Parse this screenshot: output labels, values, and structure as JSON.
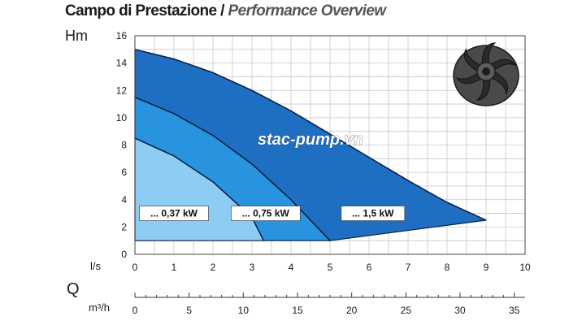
{
  "header": {
    "title_main": "Campo di Prestazione",
    "title_separator": " / ",
    "title_sub": "Performance Overview"
  },
  "watermark": "stac-pump.vn",
  "chart_data": {
    "type": "area",
    "ylabel": "Hm",
    "x_unit_label": "l/s",
    "flow_symbol": "Q",
    "secondary_x_unit_label": "m³/h",
    "xlim": [
      0,
      10
    ],
    "ylim": [
      0,
      16
    ],
    "secondary_xlim": [
      0,
      36
    ],
    "x_ticks": [
      0,
      1,
      2,
      3,
      4,
      5,
      6,
      7,
      8,
      9,
      10
    ],
    "y_ticks": [
      0,
      2,
      4,
      6,
      8,
      10,
      12,
      14,
      16
    ],
    "secondary_x_ticks": [
      0,
      5,
      10,
      15,
      20,
      25,
      30,
      35
    ],
    "grid": true,
    "series": [
      {
        "name": "... 1,5 kW",
        "color": "#1e6fc2",
        "upper": [
          [
            0,
            15
          ],
          [
            1,
            14.3
          ],
          [
            2,
            13.3
          ],
          [
            3,
            12
          ],
          [
            4,
            10.5
          ],
          [
            5,
            8.8
          ],
          [
            6,
            7.1
          ],
          [
            7,
            5.4
          ],
          [
            8,
            3.8
          ],
          [
            9,
            2.5
          ]
        ],
        "lower": [
          [
            0,
            11.5
          ],
          [
            5,
            1
          ],
          [
            9,
            2.5
          ]
        ]
      },
      {
        "name": "... 0,75 kW",
        "color": "#2894e0",
        "upper": [
          [
            0,
            11.5
          ],
          [
            1,
            10.3
          ],
          [
            2,
            8.7
          ],
          [
            3,
            6.6
          ],
          [
            4,
            4
          ],
          [
            5,
            1
          ]
        ],
        "lower": [
          [
            0,
            8.5
          ],
          [
            3.3,
            1
          ],
          [
            5,
            1
          ]
        ]
      },
      {
        "name": "... 0,37 kW",
        "color": "#8dcdf3",
        "upper": [
          [
            0,
            8.5
          ],
          [
            1,
            7.2
          ],
          [
            2,
            5.3
          ],
          [
            3,
            2.7
          ],
          [
            3.3,
            1
          ]
        ],
        "lower": [
          [
            0,
            1
          ],
          [
            3.3,
            1
          ]
        ]
      }
    ]
  },
  "icons": {
    "impeller": "impeller-icon"
  }
}
